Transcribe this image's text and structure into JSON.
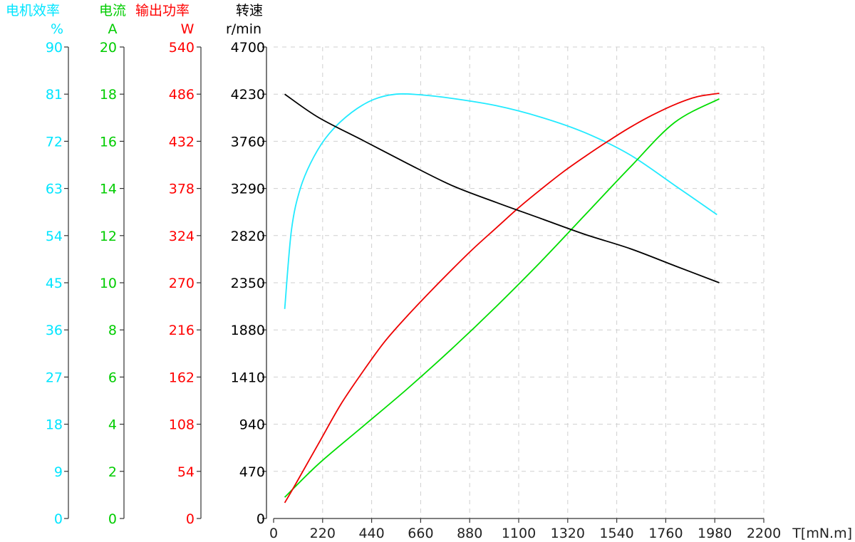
{
  "chart_data": {
    "type": "line",
    "xlabel": "T[mN.m]",
    "x_ticks": [
      "0",
      "220",
      "440",
      "660",
      "880",
      "1100",
      "1320",
      "1540",
      "1760",
      "1980",
      "2200"
    ],
    "xlim": [
      0,
      2200
    ],
    "grid": true,
    "axes": [
      {
        "key": "efficiency",
        "title": "电机效率",
        "unit": "%",
        "color": "#00e5ff",
        "ylim": [
          0,
          90
        ],
        "ticks": [
          "0",
          "9",
          "18",
          "27",
          "36",
          "45",
          "54",
          "63",
          "72",
          "81",
          "90"
        ]
      },
      {
        "key": "current",
        "title": "电流",
        "unit": "A",
        "color": "#00cc00",
        "ylim": [
          0,
          20
        ],
        "ticks": [
          "0",
          "2",
          "4",
          "6",
          "8",
          "10",
          "12",
          "14",
          "16",
          "18",
          "20"
        ]
      },
      {
        "key": "power",
        "title": "输出功率",
        "unit": "W",
        "color": "#ff0000",
        "ylim": [
          0,
          540
        ],
        "ticks": [
          "0",
          "54",
          "108",
          "162",
          "216",
          "270",
          "324",
          "378",
          "432",
          "486",
          "540"
        ]
      },
      {
        "key": "speed",
        "title": "转速",
        "unit": "r/min",
        "color": "#000000",
        "ylim": [
          0,
          4700
        ],
        "ticks": [
          "0",
          "470",
          "940",
          "1410",
          "1880",
          "2350",
          "2820",
          "3290",
          "3760",
          "4230",
          "4700"
        ]
      }
    ],
    "series": [
      {
        "axis": "efficiency",
        "color": "#22eaff",
        "x": [
          50,
          80,
          120,
          180,
          250,
          350,
          450,
          550,
          650,
          800,
          1000,
          1200,
          1400,
          1600,
          1800,
          1990
        ],
        "y": [
          40,
          55,
          63,
          69,
          73.5,
          77.5,
          80,
          81,
          80.9,
          80.2,
          78.8,
          76.6,
          73.6,
          69.4,
          63.6,
          58
        ]
      },
      {
        "axis": "current",
        "color": "#00dd00",
        "x": [
          50,
          200,
          400,
          600,
          800,
          1000,
          1200,
          1400,
          1600,
          1800,
          2000
        ],
        "y": [
          0.9,
          2.3,
          3.9,
          5.5,
          7.2,
          9.0,
          10.9,
          12.9,
          14.9,
          16.8,
          17.8
        ]
      },
      {
        "axis": "power",
        "color": "#ee0000",
        "x": [
          50,
          100,
          200,
          300,
          400,
          500,
          600,
          700,
          800,
          900,
          1000,
          1100,
          1200,
          1300,
          1400,
          1500,
          1600,
          1700,
          1800,
          1900,
          2000
        ],
        "y": [
          18,
          40,
          85,
          130,
          168,
          203,
          232,
          259,
          285,
          310,
          333,
          356,
          377,
          397,
          415,
          432,
          448,
          462,
          474,
          483,
          487
        ]
      },
      {
        "axis": "speed",
        "color": "#000000",
        "x": [
          50,
          200,
          400,
          600,
          800,
          1000,
          1200,
          1400,
          1600,
          1800,
          2000
        ],
        "y": [
          4230,
          4000,
          3770,
          3540,
          3320,
          3150,
          2990,
          2830,
          2690,
          2520,
          2350
        ]
      }
    ]
  }
}
